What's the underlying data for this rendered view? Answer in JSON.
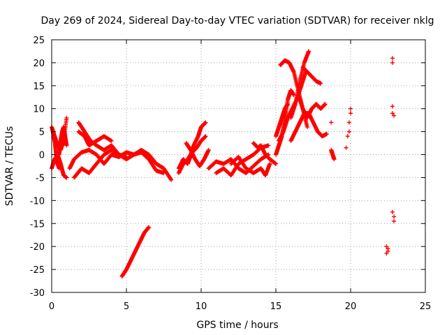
{
  "chart_data": {
    "type": "scatter",
    "title": "Day 269 of 2024, Sidereal Day-to-day VTEC variation (SDTVAR) for receiver nklg",
    "xlabel": "GPS time / hours",
    "ylabel": "SDTVAR / TECUs",
    "xlim": [
      0,
      25
    ],
    "ylim": [
      -30,
      25
    ],
    "xticks": [
      0,
      5,
      10,
      15,
      20,
      25
    ],
    "yticks": [
      -30,
      -25,
      -20,
      -15,
      -10,
      -5,
      0,
      5,
      10,
      15,
      20,
      25
    ],
    "grid": true,
    "marker": "+",
    "marker_color": "#ff0000",
    "frame_color": "#000000",
    "grid_color": "#a0a0a0",
    "series": [
      {
        "name": "arc-early-1",
        "values": [
          [
            0.0,
            6.0
          ],
          [
            0.2,
            4.0
          ],
          [
            0.4,
            2.0
          ],
          [
            0.6,
            1.0
          ],
          [
            0.8,
            3.0
          ],
          [
            1.0,
            8.0
          ]
        ]
      },
      {
        "name": "arc-early-2",
        "values": [
          [
            0.0,
            -3.0
          ],
          [
            0.2,
            -1.0
          ],
          [
            0.4,
            0.0
          ],
          [
            0.6,
            -2.0
          ],
          [
            0.8,
            -4.5
          ],
          [
            1.0,
            -5.0
          ]
        ]
      },
      {
        "name": "arc-early-3",
        "values": [
          [
            0.05,
            5.5
          ],
          [
            0.2,
            3.0
          ],
          [
            0.3,
            0.0
          ],
          [
            0.4,
            -2.0
          ],
          [
            0.5,
            -3.0
          ]
        ]
      },
      {
        "name": "arc-early-4",
        "values": [
          [
            0.5,
            0.0
          ],
          [
            0.6,
            3.0
          ],
          [
            0.7,
            5.0
          ],
          [
            0.8,
            6.0
          ],
          [
            0.9,
            4.0
          ],
          [
            1.0,
            2.0
          ]
        ]
      },
      {
        "name": "arc-a",
        "values": [
          [
            1.2,
            -3.0
          ],
          [
            1.5,
            -1.0
          ],
          [
            2.0,
            0.5
          ],
          [
            2.5,
            1.0
          ],
          [
            3.0,
            0.0
          ],
          [
            3.5,
            -2.0
          ],
          [
            4.0,
            0.0
          ],
          [
            4.5,
            -0.5
          ],
          [
            5.0,
            0.5
          ],
          [
            5.5,
            0.0
          ],
          [
            6.0,
            1.0
          ],
          [
            6.5,
            0.0
          ],
          [
            7.0,
            -2.0
          ],
          [
            7.5,
            -3.0
          ],
          [
            8.0,
            -5.5
          ]
        ]
      },
      {
        "name": "arc-b",
        "values": [
          [
            1.5,
            -5.0
          ],
          [
            2.0,
            -3.0
          ],
          [
            2.5,
            -4.0
          ],
          [
            3.0,
            -2.0
          ],
          [
            3.5,
            0.0
          ],
          [
            4.0,
            1.0
          ],
          [
            4.5,
            0.0
          ],
          [
            5.0,
            -1.0
          ],
          [
            5.5,
            0.0
          ],
          [
            6.0,
            0.5
          ],
          [
            6.5,
            -1.0
          ],
          [
            7.0,
            -3.5
          ],
          [
            7.5,
            -4.0
          ]
        ]
      },
      {
        "name": "arc-c",
        "values": [
          [
            1.8,
            5.0
          ],
          [
            2.2,
            4.0
          ],
          [
            2.5,
            2.0
          ],
          [
            3.0,
            3.0
          ],
          [
            3.5,
            4.0
          ],
          [
            4.0,
            3.0
          ]
        ]
      },
      {
        "name": "arc-d",
        "values": [
          [
            1.8,
            7.0
          ],
          [
            2.2,
            5.0
          ],
          [
            2.6,
            3.0
          ],
          [
            3.0,
            2.0
          ],
          [
            3.5,
            1.0
          ],
          [
            4.0,
            2.0
          ],
          [
            4.5,
            0.0
          ],
          [
            5.0,
            -0.5
          ]
        ]
      },
      {
        "name": "arc-e",
        "values": [
          [
            4.7,
            -26.5
          ],
          [
            5.0,
            -25.0
          ],
          [
            5.3,
            -23.0
          ],
          [
            5.6,
            -21.0
          ],
          [
            5.9,
            -19.0
          ],
          [
            6.2,
            -17.0
          ],
          [
            6.5,
            -15.8
          ]
        ]
      },
      {
        "name": "arc-f",
        "values": [
          [
            8.5,
            -4.0
          ],
          [
            8.8,
            -2.0
          ],
          [
            9.0,
            -1.5
          ],
          [
            9.3,
            0.0
          ],
          [
            9.5,
            2.0
          ],
          [
            9.8,
            4.0
          ],
          [
            10.0,
            6.0
          ],
          [
            10.3,
            7.0
          ]
        ]
      },
      {
        "name": "arc-g",
        "values": [
          [
            8.5,
            -3.0
          ],
          [
            8.8,
            -1.0
          ],
          [
            9.1,
            -2.0
          ],
          [
            9.4,
            0.5
          ],
          [
            9.7,
            1.5
          ],
          [
            10.0,
            3.0
          ],
          [
            10.3,
            4.0
          ]
        ]
      },
      {
        "name": "arc-h",
        "values": [
          [
            9.0,
            2.5
          ],
          [
            9.3,
            1.0
          ],
          [
            9.6,
            -1.0
          ],
          [
            9.9,
            -2.5
          ],
          [
            10.2,
            -1.0
          ],
          [
            10.5,
            1.0
          ]
        ]
      },
      {
        "name": "arc-i",
        "values": [
          [
            10.5,
            -3.0
          ],
          [
            11.0,
            -1.5
          ],
          [
            11.5,
            -2.0
          ],
          [
            12.0,
            -1.0
          ],
          [
            12.5,
            -3.0
          ],
          [
            13.0,
            -4.0
          ],
          [
            13.5,
            -2.5
          ],
          [
            14.0,
            -1.0
          ],
          [
            14.5,
            0.0
          ]
        ]
      },
      {
        "name": "arc-j",
        "values": [
          [
            11.0,
            -4.0
          ],
          [
            11.5,
            -3.0
          ],
          [
            12.0,
            -4.5
          ],
          [
            12.5,
            -2.0
          ],
          [
            13.0,
            -1.0
          ],
          [
            13.5,
            0.0
          ],
          [
            14.0,
            1.5
          ],
          [
            14.5,
            2.0
          ]
        ]
      },
      {
        "name": "arc-k",
        "values": [
          [
            12.0,
            -2.0
          ],
          [
            12.5,
            -0.5
          ],
          [
            13.0,
            -3.0
          ],
          [
            13.5,
            -4.0
          ],
          [
            14.0,
            -3.0
          ],
          [
            14.3,
            -4.5
          ],
          [
            14.6,
            -2.0
          ]
        ]
      },
      {
        "name": "arc-l",
        "values": [
          [
            13.5,
            2.5
          ],
          [
            13.8,
            1.5
          ],
          [
            14.0,
            2.0
          ],
          [
            14.3,
            0.0
          ],
          [
            14.6,
            -1.0
          ],
          [
            15.0,
            -2.0
          ]
        ]
      },
      {
        "name": "arc-m",
        "values": [
          [
            15.0,
            0.0
          ],
          [
            15.2,
            2.0
          ],
          [
            15.4,
            4.0
          ],
          [
            15.6,
            8.0
          ],
          [
            15.8,
            12.0
          ],
          [
            16.0,
            14.0
          ],
          [
            16.2,
            13.0
          ]
        ]
      },
      {
        "name": "arc-n",
        "values": [
          [
            15.0,
            4.0
          ],
          [
            15.2,
            6.0
          ],
          [
            15.4,
            8.0
          ],
          [
            15.6,
            10.0
          ],
          [
            15.8,
            11.0
          ]
        ]
      },
      {
        "name": "arc-o",
        "values": [
          [
            15.2,
            3.0
          ],
          [
            15.5,
            5.0
          ],
          [
            15.8,
            8.0
          ],
          [
            16.1,
            10.0
          ],
          [
            16.4,
            12.0
          ],
          [
            16.7,
            15.0
          ],
          [
            17.0,
            18.0
          ]
        ]
      },
      {
        "name": "arc-p",
        "values": [
          [
            16.0,
            8.0
          ],
          [
            16.3,
            11.0
          ],
          [
            16.6,
            16.0
          ],
          [
            16.9,
            20.0
          ],
          [
            17.2,
            22.5
          ]
        ]
      },
      {
        "name": "arc-q",
        "values": [
          [
            15.3,
            19.5
          ],
          [
            15.6,
            20.5
          ],
          [
            15.9,
            20.0
          ],
          [
            16.2,
            18.0
          ],
          [
            16.5,
            14.0
          ],
          [
            16.8,
            10.0
          ],
          [
            17.1,
            6.0
          ]
        ]
      },
      {
        "name": "arc-r",
        "values": [
          [
            16.5,
            13.0
          ],
          [
            16.8,
            10.0
          ],
          [
            17.1,
            8.0
          ],
          [
            17.4,
            10.0
          ],
          [
            17.7,
            11.0
          ],
          [
            18.0,
            10.0
          ],
          [
            18.3,
            11.0
          ]
        ]
      },
      {
        "name": "arc-s",
        "values": [
          [
            16.0,
            3.0
          ],
          [
            16.3,
            5.0
          ],
          [
            16.6,
            7.0
          ],
          [
            16.9,
            9.0
          ],
          [
            17.2,
            9.0
          ],
          [
            17.5,
            7.0
          ],
          [
            17.8,
            5.0
          ],
          [
            18.1,
            4.0
          ],
          [
            18.4,
            4.5
          ]
        ]
      },
      {
        "name": "arc-t",
        "values": [
          [
            16.8,
            19.0
          ],
          [
            17.1,
            18.0
          ],
          [
            17.4,
            17.0
          ],
          [
            17.7,
            16.0
          ],
          [
            18.0,
            15.5
          ]
        ]
      },
      {
        "name": "arc-u",
        "values": [
          [
            18.7,
            1.0
          ],
          [
            18.8,
            0.0
          ],
          [
            18.9,
            -1.0
          ]
        ]
      },
      {
        "name": "pts-19",
        "values": [
          [
            18.7,
            7.0
          ],
          [
            19.7,
            1.5
          ],
          [
            19.8,
            4.0
          ],
          [
            19.9,
            5.0
          ],
          [
            19.9,
            7.0
          ],
          [
            20.0,
            9.0
          ],
          [
            20.0,
            10.0
          ]
        ]
      },
      {
        "name": "pts-22",
        "values": [
          [
            22.4,
            -20.0
          ],
          [
            22.5,
            -21.0
          ],
          [
            22.4,
            -21.5
          ],
          [
            22.5,
            -20.5
          ]
        ]
      },
      {
        "name": "pts-23",
        "values": [
          [
            22.8,
            21.0
          ],
          [
            22.8,
            20.0
          ],
          [
            22.8,
            10.5
          ],
          [
            22.8,
            9.0
          ],
          [
            22.9,
            8.5
          ],
          [
            22.8,
            -12.5
          ],
          [
            22.9,
            -13.5
          ],
          [
            22.9,
            -14.5
          ]
        ]
      }
    ]
  }
}
